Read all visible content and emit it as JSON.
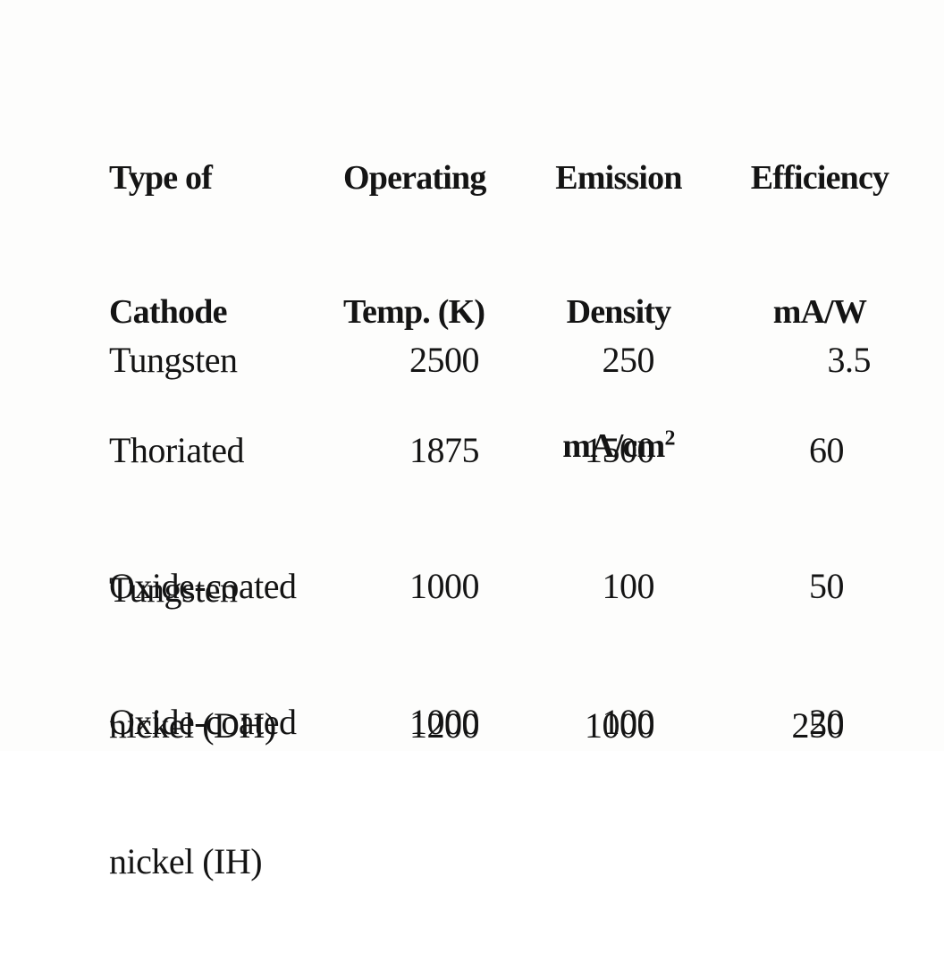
{
  "table": {
    "headers": {
      "type": [
        "Type of",
        "Cathode"
      ],
      "temp": [
        "Operating",
        "Temp. (K)"
      ],
      "density": [
        "Emission",
        "Density",
        "mA/cm",
        "2"
      ],
      "efficiency": [
        "Efficiency",
        "mA/W"
      ]
    },
    "rows": [
      {
        "type": [
          "Tungsten"
        ],
        "temp": [
          "2500"
        ],
        "density": [
          "250"
        ],
        "efficiency": [
          "3.5"
        ]
      },
      {
        "type": [
          "Thoriated",
          "Tungsten"
        ],
        "temp": [
          "1875"
        ],
        "density": [
          "1500"
        ],
        "efficiency": [
          "60"
        ]
      },
      {
        "type": [
          "Oxide-coated",
          "nickel (DH)"
        ],
        "temp": [
          "1000",
          "1200"
        ],
        "density": [
          "100",
          "1000"
        ],
        "efficiency": [
          "50",
          "250"
        ]
      },
      {
        "type": [
          "Oxide-coated",
          "nickel (IH)"
        ],
        "temp": [
          "1000"
        ],
        "density": [
          "100"
        ],
        "efficiency": [
          "20"
        ]
      }
    ]
  }
}
